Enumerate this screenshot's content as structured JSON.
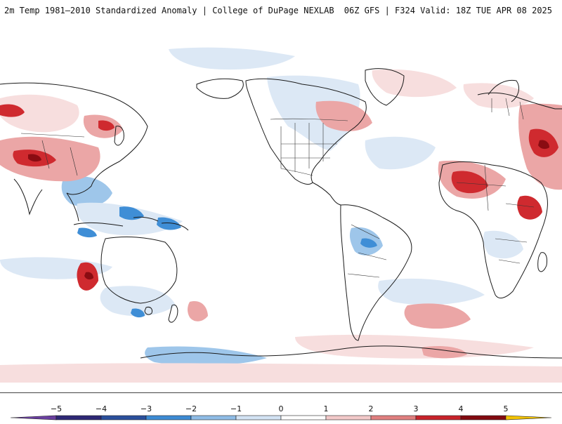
{
  "header": {
    "title_left": "2m Temp 1981–2010 Standardized Anomaly | College of DuPage NEXLAB",
    "title_right": "06Z GFS | F324 Valid: 18Z TUE APR 08 2025"
  },
  "colorbar": {
    "ticks": [
      "−5",
      "−4",
      "−3",
      "−2",
      "−1",
      "0",
      "1",
      "2",
      "3",
      "4",
      "5"
    ],
    "colors": [
      "#2e2876",
      "#2a4f9c",
      "#3d8bd4",
      "#8fbce6",
      "#d3e3f4",
      "#ffffff",
      "#ffffff",
      "#f2c9c9",
      "#e07f7f",
      "#c8232a",
      "#820a10"
    ],
    "end_colors": {
      "low": "#6a3fa0",
      "high": "#f2c200"
    }
  },
  "map": {
    "projection": "equirectangular",
    "center": "pacific",
    "colors": {
      "warm_light": "#f7dede",
      "warm_mid": "#eba6a6",
      "warm_strong": "#cf2a2f",
      "warm_extreme": "#8a0c12",
      "cool_light": "#dce8f5",
      "cool_mid": "#9ec6ea",
      "cool_strong": "#3f8ed6",
      "cool_extreme": "#2c55a8",
      "coast": "#1a1a1a",
      "border": "#333333"
    }
  }
}
